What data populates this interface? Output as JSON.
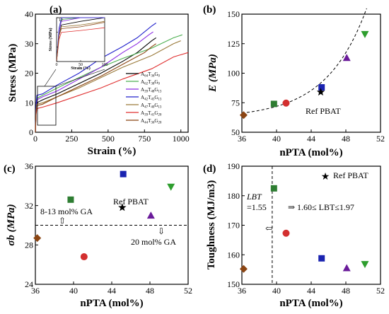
{
  "chart_data": [
    {
      "panel": "(a)",
      "type": "line",
      "xlabel": "Strain (%)",
      "ylabel": "Stress (MPa)",
      "xlim": [
        0,
        1050
      ],
      "ylim": [
        0,
        40
      ],
      "xticks": [
        "0",
        "250",
        "500",
        "750",
        "1000"
      ],
      "yticks": [
        "0",
        "10",
        "20",
        "30",
        "40"
      ],
      "legend_position": "center-right",
      "series": [
        {
          "name": "A64T36G0",
          "color": "#000000",
          "x": [
            0,
            5,
            10,
            50,
            150,
            300,
            450,
            600,
            700,
            800,
            830
          ],
          "y": [
            0,
            7,
            10,
            11,
            13,
            16.5,
            20,
            24,
            27,
            31,
            32
          ]
        },
        {
          "name": "A62T38G0",
          "color": "#4caf50",
          "x": [
            0,
            5,
            10,
            50,
            150,
            300,
            450,
            600,
            800,
            950,
            1010
          ],
          "y": [
            0,
            8,
            11.5,
            12.5,
            15,
            18.5,
            22,
            25,
            28.5,
            32,
            33
          ]
        },
        {
          "name": "A39T48G13",
          "color": "#8a2be2",
          "x": [
            0,
            5,
            10,
            50,
            150,
            300,
            450,
            600,
            700,
            780,
            810
          ],
          "y": [
            0,
            8,
            11,
            12,
            14,
            18,
            22,
            27,
            30,
            33,
            34
          ]
        },
        {
          "name": "A42T45G13",
          "color": "#2222cc",
          "x": [
            0,
            5,
            10,
            50,
            150,
            300,
            450,
            600,
            700,
            800,
            830
          ],
          "y": [
            0,
            9,
            12.5,
            13,
            16,
            20,
            25,
            29,
            32,
            36,
            37
          ]
        },
        {
          "name": "A47T40G13",
          "color": "#9a7a3a",
          "x": [
            0,
            5,
            10,
            50,
            150,
            300,
            450,
            600,
            800,
            950,
            1000
          ],
          "y": [
            0,
            7,
            9.5,
            10,
            12,
            15,
            18.5,
            22,
            26,
            30,
            31
          ]
        },
        {
          "name": "A39T41G20",
          "color": "#e03030",
          "x": [
            0,
            5,
            10,
            50,
            150,
            300,
            450,
            600,
            800,
            950,
            1050
          ],
          "y": [
            0,
            6,
            8,
            8.5,
            10,
            12.5,
            15,
            18,
            21.5,
            25.5,
            27
          ]
        },
        {
          "name": "A44T36G20",
          "color": "#8b4513",
          "x": [
            0,
            5,
            10,
            50,
            150,
            300,
            450,
            600,
            750,
            800,
            830
          ],
          "y": [
            0,
            7,
            9,
            9.5,
            12,
            15.5,
            19,
            23,
            27,
            29,
            30
          ]
        }
      ],
      "inset": {
        "xlabel": "Strain (%)",
        "ylabel": "Stress (MPa)",
        "xlim": [
          0,
          100
        ],
        "ylim": [
          0,
          12
        ],
        "xticks": [
          "0",
          "50",
          "100"
        ],
        "yticks": [
          "0",
          "4",
          "8",
          "12"
        ]
      }
    },
    {
      "panel": "(b)",
      "type": "scatter",
      "xlabel": "nPTA (mol%)",
      "ylabel": "E (MPa)",
      "xlim": [
        36,
        52
      ],
      "ylim": [
        50,
        150
      ],
      "xticks": [
        "36",
        "40",
        "44",
        "48",
        "52"
      ],
      "yticks": [
        "50",
        "75",
        "100",
        "125",
        "150"
      ],
      "annotations": [
        "Ref PBAT"
      ],
      "points": [
        {
          "x": 36.2,
          "y": 64.5,
          "marker": "diamond",
          "color": "#8b4513"
        },
        {
          "x": 39.7,
          "y": 74,
          "marker": "square",
          "color": "#2e7d32"
        },
        {
          "x": 41.1,
          "y": 74.7,
          "marker": "circle",
          "color": "#d32f2f"
        },
        {
          "x": 45.2,
          "y": 88,
          "marker": "square",
          "color": "#1a23b0"
        },
        {
          "x": 45.1,
          "y": 84,
          "marker": "star",
          "color": "#000000"
        },
        {
          "x": 48.1,
          "y": 113,
          "marker": "triangle-up",
          "color": "#6a1b9a"
        },
        {
          "x": 50.2,
          "y": 133,
          "marker": "triangle-down",
          "color": "#2e9e2e"
        }
      ]
    },
    {
      "panel": "(c)",
      "type": "scatter",
      "xlabel": "nPTA (mol%)",
      "ylabel": "σb (MPa)",
      "xlim": [
        36,
        52
      ],
      "ylim": [
        24,
        36
      ],
      "xticks": [
        "36",
        "40",
        "44",
        "48",
        "52"
      ],
      "yticks": [
        "24",
        "28",
        "32",
        "36"
      ],
      "annotations": [
        "Ref PBAT",
        "8-13 mol% GA",
        "20 mol% GA"
      ],
      "threshold_y": 30,
      "points": [
        {
          "x": 36.2,
          "y": 28.7,
          "marker": "diamond",
          "color": "#8b4513"
        },
        {
          "x": 39.7,
          "y": 32.6,
          "marker": "square",
          "color": "#2e7d32"
        },
        {
          "x": 41.1,
          "y": 26.8,
          "marker": "circle",
          "color": "#d32f2f"
        },
        {
          "x": 45.2,
          "y": 35.2,
          "marker": "square",
          "color": "#1a23b0"
        },
        {
          "x": 45.1,
          "y": 31.8,
          "marker": "star",
          "color": "#000000"
        },
        {
          "x": 48.1,
          "y": 31.0,
          "marker": "triangle-up",
          "color": "#6a1b9a"
        },
        {
          "x": 50.2,
          "y": 33.9,
          "marker": "triangle-down",
          "color": "#2e9e2e"
        }
      ]
    },
    {
      "panel": "(d)",
      "type": "scatter",
      "xlabel": "nPTA (mol%)",
      "ylabel": "Toughness (MJ/m3)",
      "xlim": [
        36,
        52
      ],
      "ylim": [
        150,
        190
      ],
      "xticks": [
        "36",
        "40",
        "44",
        "48",
        "52"
      ],
      "yticks": [
        "150",
        "160",
        "170",
        "180",
        "190"
      ],
      "threshold_x": 39.5,
      "annotations": [
        "Ref PBAT",
        "LBT",
        "=1.55",
        "⇒ 1.60≤ LBT≤1.97"
      ],
      "points": [
        {
          "x": 36.2,
          "y": 155.2,
          "marker": "diamond",
          "color": "#8b4513"
        },
        {
          "x": 39.7,
          "y": 182.5,
          "marker": "square",
          "color": "#2e7d32"
        },
        {
          "x": 41.1,
          "y": 167.3,
          "marker": "circle",
          "color": "#d32f2f"
        },
        {
          "x": 45.2,
          "y": 158.8,
          "marker": "square",
          "color": "#1a23b0"
        },
        {
          "x": 48.1,
          "y": 155.5,
          "marker": "triangle-up",
          "color": "#6a1b9a"
        },
        {
          "x": 50.2,
          "y": 156.8,
          "marker": "triangle-down",
          "color": "#2e9e2e"
        }
      ]
    }
  ]
}
